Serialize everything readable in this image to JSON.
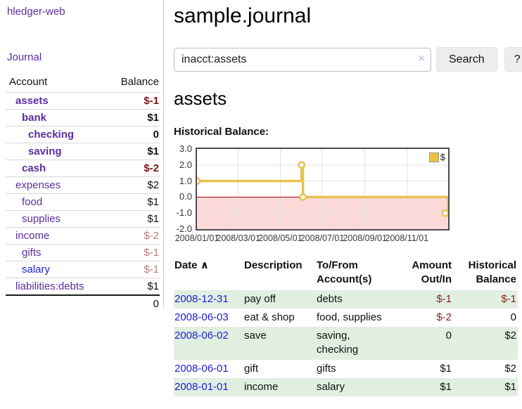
{
  "sidebar": {
    "brand": "hledger-web",
    "journal_link": "Journal",
    "accounts_table": {
      "account_header": "Account",
      "balance_header": "Balance",
      "rows": [
        {
          "name": "assets",
          "balance": "$-1",
          "indent": 1,
          "bold": true,
          "balance_style": "neg-dark"
        },
        {
          "name": "bank",
          "balance": "$1",
          "indent": 2,
          "bold": true,
          "balance_style": "normal"
        },
        {
          "name": "checking",
          "balance": "0",
          "indent": 3,
          "bold": true,
          "balance_style": "normal"
        },
        {
          "name": "saving",
          "balance": "$1",
          "indent": 3,
          "bold": true,
          "balance_style": "normal"
        },
        {
          "name": "cash",
          "balance": "$-2",
          "indent": 2,
          "bold": true,
          "balance_style": "neg-dark"
        },
        {
          "name": "expenses",
          "balance": "$2",
          "indent": 1,
          "bold": false,
          "balance_style": "normal"
        },
        {
          "name": "food",
          "balance": "$1",
          "indent": 2,
          "bold": false,
          "balance_style": "normal"
        },
        {
          "name": "supplies",
          "balance": "$1",
          "indent": 2,
          "bold": false,
          "balance_style": "normal"
        },
        {
          "name": "income",
          "balance": "$-2",
          "indent": 1,
          "bold": false,
          "balance_style": "neg-soft"
        },
        {
          "name": "gifts",
          "balance": "$-1",
          "indent": 2,
          "bold": false,
          "balance_style": "neg-soft"
        },
        {
          "name": "salary",
          "balance": "$-1",
          "indent": 2,
          "bold": false,
          "balance_style": "neg-soft",
          "link_color": "blue"
        },
        {
          "name": "liabilities:debts",
          "balance": "$1",
          "indent": 1,
          "bold": false,
          "balance_style": "normal"
        }
      ],
      "total": "0"
    }
  },
  "header": {
    "title": "sample.journal"
  },
  "search": {
    "value": "inacct:assets",
    "clear_icon": "×",
    "button_label": "Search",
    "help_label": "?"
  },
  "account_page": {
    "title": "assets",
    "chart_label": "Historical Balance:"
  },
  "chart_data": {
    "type": "line",
    "step": true,
    "title": "Historical Balance",
    "legend": "$",
    "legend_position": "top-right",
    "series": [
      {
        "name": "$",
        "x": [
          "2008-01-01",
          "2008-06-01",
          "2008-06-03",
          "2008-12-31"
        ],
        "y": [
          1,
          2,
          0,
          -1
        ],
        "x_days": [
          0,
          152,
          154,
          365
        ],
        "color": "#e8c14f",
        "marker_fill": "#ffffff"
      }
    ],
    "ylim": [
      -2,
      3
    ],
    "x_max_days": 365,
    "yticks": [
      {
        "label": "3.0",
        "value": 3
      },
      {
        "label": "2.0",
        "value": 2
      },
      {
        "label": "1.0",
        "value": 1
      },
      {
        "label": "0.0",
        "value": 0
      },
      {
        "label": "-1.0",
        "value": -1
      },
      {
        "label": "-2.0",
        "value": -2
      }
    ],
    "xticks": [
      {
        "label": "2008/01/01",
        "day": 0
      },
      {
        "label": "2008/03/01",
        "day": 60
      },
      {
        "label": "2008/05/01",
        "day": 121
      },
      {
        "label": "2008/07/01",
        "day": 182
      },
      {
        "label": "2008/09/01",
        "day": 244
      },
      {
        "label": "2008/11/01",
        "day": 305
      }
    ],
    "grid": true,
    "gridline_color": "#e2e2e2",
    "negative_region_color": "#fbd9d9",
    "zero_line_color": "#9c0000"
  },
  "register": {
    "columns": {
      "date": "Date",
      "date_sort_arrow": "∧",
      "description": "Description",
      "accounts": "To/From Account(s)",
      "amount": "Amount Out/In",
      "balance": "Historical Balance"
    },
    "rows": [
      {
        "date": "2008-12-31",
        "description": "pay off",
        "accounts_lines": [
          "debts"
        ],
        "amount": "$-1",
        "balance": "$-1",
        "amount_negative": true,
        "balance_negative": true
      },
      {
        "date": "2008-06-03",
        "description": "eat & shop",
        "accounts_lines": [
          "food, supplies"
        ],
        "amount": "$-2",
        "balance": "0",
        "amount_negative": true,
        "balance_negative": false
      },
      {
        "date": "2008-06-02",
        "description": "save",
        "accounts_lines": [
          "saving,",
          "checking"
        ],
        "amount": "0",
        "balance": "$2",
        "amount_negative": false,
        "balance_negative": false
      },
      {
        "date": "2008-06-01",
        "description": "gift",
        "accounts_lines": [
          "gifts"
        ],
        "amount": "$1",
        "balance": "$2",
        "amount_negative": false,
        "balance_negative": false
      },
      {
        "date": "2008-01-01",
        "description": "income",
        "accounts_lines": [
          "salary"
        ],
        "amount": "$1",
        "balance": "$1",
        "amount_negative": false,
        "balance_negative": false
      }
    ]
  },
  "colors": {
    "link_purple": "#5c2da2",
    "link_blue": "#1d1dd8",
    "negative_dark": "#7c1414",
    "negative_soft": "#b97c7c",
    "register_negative": "#8b1c1c",
    "row_green": "#e1efe1",
    "series_gold": "#e8c14f"
  }
}
